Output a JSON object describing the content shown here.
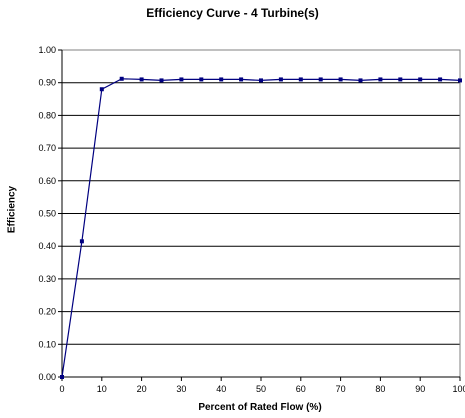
{
  "chart_data": {
    "type": "line",
    "title": "Efficiency Curve - 4 Turbine(s)",
    "xlabel": "Percent of Rated Flow (%)",
    "ylabel": "Efficiency",
    "xlim": [
      0,
      100
    ],
    "ylim": [
      0,
      1
    ],
    "x_ticks": [
      "0",
      "10",
      "20",
      "30",
      "40",
      "50",
      "60",
      "70",
      "80",
      "90",
      "100"
    ],
    "y_ticks": [
      "0.00",
      "0.10",
      "0.20",
      "0.30",
      "0.40",
      "0.50",
      "0.60",
      "0.70",
      "0.80",
      "0.90",
      "1.00"
    ],
    "grid": "horizontal",
    "series_color": "#000080",
    "series": [
      {
        "x": [
          0,
          5,
          10,
          15,
          20,
          25,
          30,
          35,
          40,
          45,
          50,
          55,
          60,
          65,
          70,
          75,
          80,
          85,
          90,
          95,
          100
        ],
        "values": [
          0.0,
          0.415,
          0.88,
          0.912,
          0.91,
          0.907,
          0.91,
          0.91,
          0.91,
          0.91,
          0.907,
          0.91,
          0.91,
          0.91,
          0.91,
          0.907,
          0.91,
          0.91,
          0.91,
          0.91,
          0.907
        ]
      }
    ]
  }
}
